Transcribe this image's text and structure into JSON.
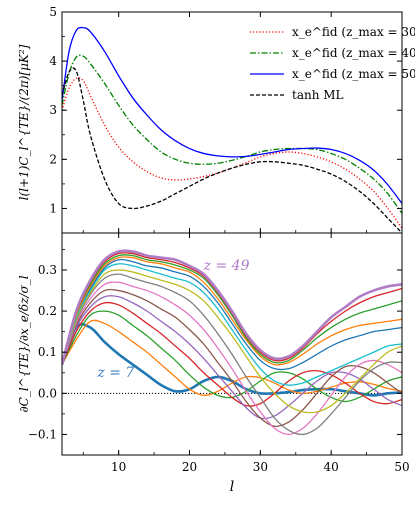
{
  "chart_data": [
    {
      "type": "line",
      "ylabel": "l(l+1)C_l^{TE}/(2π)[μK²]",
      "xlim": [
        2,
        50
      ],
      "ylim": [
        0.5,
        5
      ],
      "yticks": [
        1,
        2,
        3,
        4,
        5
      ],
      "grid": false,
      "legend": "top-right",
      "series": [
        {
          "name": "x_e^fid (z_max = 30)",
          "color": "#ff0000",
          "dash": "dotted",
          "x": [
            2,
            3,
            4,
            5,
            6,
            8,
            10,
            12,
            14,
            16,
            18,
            20,
            22,
            24,
            26,
            28,
            30,
            32,
            34,
            36,
            38,
            40,
            42,
            44,
            46,
            48,
            50
          ],
          "y": [
            3.0,
            3.45,
            3.65,
            3.6,
            3.3,
            2.7,
            2.25,
            1.95,
            1.75,
            1.62,
            1.58,
            1.6,
            1.65,
            1.72,
            1.82,
            1.93,
            2.05,
            2.12,
            2.15,
            2.12,
            2.05,
            1.95,
            1.8,
            1.6,
            1.35,
            1.0,
            0.6
          ]
        },
        {
          "name": "x_e^fid (z_max = 40)",
          "color": "#008000",
          "dash": "dashdot",
          "x": [
            2,
            3,
            4,
            5,
            6,
            8,
            10,
            12,
            14,
            16,
            18,
            20,
            22,
            24,
            26,
            28,
            30,
            32,
            34,
            36,
            38,
            40,
            42,
            44,
            46,
            48,
            50
          ],
          "y": [
            3.1,
            3.75,
            4.08,
            4.1,
            3.95,
            3.55,
            3.1,
            2.7,
            2.4,
            2.15,
            2.0,
            1.92,
            1.9,
            1.92,
            1.98,
            2.06,
            2.15,
            2.2,
            2.22,
            2.22,
            2.2,
            2.12,
            2.0,
            1.82,
            1.6,
            1.3,
            0.9
          ]
        },
        {
          "name": "x_e^fid (z_max = 50)",
          "color": "#0000ff",
          "dash": "solid",
          "x": [
            2,
            3,
            4,
            5,
            6,
            8,
            10,
            12,
            14,
            16,
            18,
            20,
            22,
            24,
            26,
            28,
            30,
            32,
            34,
            36,
            38,
            40,
            42,
            44,
            46,
            48,
            50
          ],
          "y": [
            3.2,
            4.2,
            4.62,
            4.68,
            4.6,
            4.2,
            3.7,
            3.25,
            2.9,
            2.6,
            2.38,
            2.22,
            2.12,
            2.07,
            2.05,
            2.06,
            2.1,
            2.15,
            2.2,
            2.22,
            2.23,
            2.2,
            2.12,
            1.98,
            1.78,
            1.48,
            1.1
          ]
        },
        {
          "name": "tanh ML",
          "color": "#000000",
          "dash": "dashed",
          "x": [
            2,
            3,
            4,
            5,
            6,
            8,
            10,
            12,
            14,
            16,
            18,
            20,
            22,
            24,
            26,
            28,
            30,
            32,
            34,
            36,
            38,
            40,
            42,
            44,
            46,
            48,
            50
          ],
          "y": [
            3.3,
            3.78,
            3.8,
            3.2,
            2.5,
            1.6,
            1.1,
            1.0,
            1.05,
            1.15,
            1.3,
            1.45,
            1.6,
            1.72,
            1.82,
            1.9,
            1.95,
            1.95,
            1.92,
            1.88,
            1.8,
            1.7,
            1.55,
            1.35,
            1.1,
            0.8,
            0.5
          ]
        }
      ]
    },
    {
      "type": "line",
      "xlabel": "l",
      "ylabel": "∂C_l^{TE}/∂x_e/δz/σ_l",
      "xlim": [
        2,
        50
      ],
      "ylim": [
        -0.15,
        0.39
      ],
      "xticks": [
        10,
        20,
        30,
        40,
        50
      ],
      "yticks": [
        -0.1,
        0.0,
        0.1,
        0.2,
        0.3
      ],
      "reference_line": {
        "y": 0.0,
        "style": "dotted"
      },
      "annotations": [
        {
          "text": "z = 49",
          "x": 22,
          "y": 0.3,
          "color": "#b07cc6"
        },
        {
          "text": "z = 7",
          "x": 7,
          "y": 0.04,
          "color": "#3a7fc1"
        }
      ],
      "series": [
        {
          "color": "#1f77b4",
          "width": 2.6,
          "x": [
            2,
            4,
            6,
            8,
            10,
            12,
            14,
            16,
            18,
            20,
            22,
            24,
            26,
            28,
            30,
            32,
            34,
            36,
            38,
            40,
            42,
            44,
            46,
            48,
            50
          ],
          "y": [
            0.07,
            0.16,
            0.16,
            0.125,
            0.095,
            0.07,
            0.045,
            0.02,
            0.005,
            0.01,
            0.03,
            0.04,
            0.03,
            0.01,
            0.0,
            0.0,
            0.003,
            0.008,
            0.01,
            0.01,
            0.005,
            0.0,
            -0.005,
            0.0,
            0.002
          ]
        },
        {
          "color": "#ff7f0e",
          "x": [
            2,
            4,
            6,
            8,
            10,
            12,
            14,
            16,
            18,
            20,
            22,
            24,
            26,
            28,
            30,
            32,
            34,
            36,
            38,
            40,
            42,
            44,
            46,
            48,
            50
          ],
          "y": [
            0.07,
            0.13,
            0.175,
            0.17,
            0.15,
            0.125,
            0.1,
            0.07,
            0.04,
            0.01,
            -0.005,
            0.005,
            0.025,
            0.04,
            0.038,
            0.025,
            0.008,
            0.0,
            0.005,
            0.015,
            0.025,
            0.028,
            0.022,
            0.012,
            0.005
          ]
        },
        {
          "color": "#2ca02c",
          "x": [
            2,
            4,
            6,
            8,
            10,
            12,
            14,
            16,
            18,
            20,
            22,
            24,
            26,
            28,
            30,
            32,
            34,
            36,
            38,
            40,
            42,
            44,
            46,
            48,
            50
          ],
          "y": [
            0.07,
            0.14,
            0.19,
            0.2,
            0.19,
            0.165,
            0.14,
            0.11,
            0.08,
            0.045,
            0.015,
            -0.005,
            -0.01,
            0.005,
            0.03,
            0.05,
            0.05,
            0.035,
            0.01,
            -0.01,
            -0.02,
            -0.01,
            0.01,
            0.03,
            0.04
          ]
        },
        {
          "color": "#d62728",
          "x": [
            2,
            4,
            6,
            8,
            10,
            12,
            14,
            16,
            18,
            20,
            22,
            24,
            26,
            28,
            30,
            32,
            34,
            36,
            38,
            40,
            42,
            44,
            46,
            48,
            50
          ],
          "y": [
            0.07,
            0.15,
            0.2,
            0.22,
            0.215,
            0.195,
            0.17,
            0.145,
            0.115,
            0.085,
            0.05,
            0.02,
            -0.01,
            -0.03,
            -0.025,
            0.0,
            0.03,
            0.05,
            0.055,
            0.045,
            0.025,
            0.0,
            -0.02,
            -0.025,
            -0.015
          ]
        },
        {
          "color": "#9467bd",
          "x": [
            2,
            4,
            6,
            8,
            10,
            12,
            14,
            16,
            18,
            20,
            22,
            24,
            26,
            28,
            30,
            32,
            34,
            36,
            38,
            40,
            42,
            44,
            46,
            48,
            50
          ],
          "y": [
            0.07,
            0.16,
            0.21,
            0.235,
            0.235,
            0.22,
            0.2,
            0.175,
            0.15,
            0.12,
            0.085,
            0.045,
            0.005,
            -0.035,
            -0.06,
            -0.055,
            -0.03,
            0.0,
            0.03,
            0.05,
            0.05,
            0.035,
            0.01,
            -0.015,
            -0.03
          ]
        },
        {
          "color": "#8c564b",
          "x": [
            2,
            4,
            6,
            8,
            10,
            12,
            14,
            16,
            18,
            20,
            22,
            24,
            26,
            28,
            30,
            32,
            34,
            36,
            38,
            40,
            42,
            44,
            46,
            48,
            50
          ],
          "y": [
            0.07,
            0.165,
            0.22,
            0.25,
            0.25,
            0.24,
            0.225,
            0.205,
            0.185,
            0.155,
            0.12,
            0.075,
            0.03,
            -0.02,
            -0.06,
            -0.08,
            -0.07,
            -0.04,
            0.0,
            0.04,
            0.065,
            0.065,
            0.05,
            0.025,
            0.0
          ]
        },
        {
          "color": "#e377c2",
          "x": [
            2,
            4,
            6,
            8,
            10,
            12,
            14,
            16,
            18,
            20,
            22,
            24,
            26,
            28,
            30,
            32,
            34,
            36,
            38,
            40,
            42,
            44,
            46,
            48,
            50
          ],
          "y": [
            0.07,
            0.17,
            0.23,
            0.265,
            0.27,
            0.26,
            0.25,
            0.235,
            0.215,
            0.19,
            0.155,
            0.11,
            0.06,
            0.005,
            -0.045,
            -0.085,
            -0.1,
            -0.085,
            -0.05,
            -0.005,
            0.04,
            0.07,
            0.08,
            0.07,
            0.05
          ]
        },
        {
          "color": "#7f7f7f",
          "x": [
            2,
            4,
            6,
            8,
            10,
            12,
            14,
            16,
            18,
            20,
            22,
            24,
            26,
            28,
            30,
            32,
            34,
            36,
            38,
            40,
            42,
            44,
            46,
            48,
            50
          ],
          "y": [
            0.07,
            0.175,
            0.24,
            0.28,
            0.29,
            0.28,
            0.27,
            0.26,
            0.245,
            0.225,
            0.19,
            0.145,
            0.095,
            0.04,
            -0.01,
            -0.06,
            -0.09,
            -0.1,
            -0.085,
            -0.05,
            -0.01,
            0.03,
            0.06,
            0.075,
            0.075
          ]
        },
        {
          "color": "#bcbd22",
          "x": [
            2,
            4,
            6,
            8,
            10,
            12,
            14,
            16,
            18,
            20,
            22,
            24,
            26,
            28,
            30,
            32,
            34,
            36,
            38,
            40,
            42,
            44,
            46,
            48,
            50
          ],
          "y": [
            0.07,
            0.18,
            0.245,
            0.29,
            0.3,
            0.295,
            0.285,
            0.275,
            0.265,
            0.25,
            0.225,
            0.185,
            0.14,
            0.09,
            0.04,
            0.0,
            -0.03,
            -0.045,
            -0.045,
            -0.03,
            0.0,
            0.035,
            0.07,
            0.1,
            0.115
          ]
        },
        {
          "color": "#17becf",
          "x": [
            2,
            4,
            6,
            8,
            10,
            12,
            14,
            16,
            18,
            20,
            22,
            24,
            26,
            28,
            30,
            32,
            34,
            36,
            38,
            40,
            42,
            44,
            46,
            48,
            50
          ],
          "y": [
            0.07,
            0.185,
            0.25,
            0.3,
            0.315,
            0.31,
            0.3,
            0.29,
            0.28,
            0.27,
            0.245,
            0.205,
            0.155,
            0.105,
            0.06,
            0.03,
            0.02,
            0.025,
            0.04,
            0.055,
            0.07,
            0.085,
            0.1,
            0.115,
            0.12
          ]
        },
        {
          "color": "#1f77b4",
          "x": [
            2,
            4,
            6,
            8,
            10,
            12,
            14,
            16,
            18,
            20,
            22,
            24,
            26,
            28,
            30,
            32,
            34,
            36,
            38,
            40,
            42,
            44,
            46,
            48,
            50
          ],
          "y": [
            0.07,
            0.19,
            0.255,
            0.305,
            0.325,
            0.32,
            0.31,
            0.305,
            0.295,
            0.285,
            0.26,
            0.22,
            0.17,
            0.12,
            0.08,
            0.06,
            0.06,
            0.075,
            0.095,
            0.115,
            0.13,
            0.14,
            0.15,
            0.155,
            0.16
          ]
        },
        {
          "color": "#ff7f0e",
          "x": [
            2,
            4,
            6,
            8,
            10,
            12,
            14,
            16,
            18,
            20,
            22,
            24,
            26,
            28,
            30,
            32,
            34,
            36,
            38,
            40,
            42,
            44,
            46,
            48,
            50
          ],
          "y": [
            0.07,
            0.19,
            0.26,
            0.31,
            0.33,
            0.33,
            0.32,
            0.315,
            0.305,
            0.295,
            0.27,
            0.23,
            0.18,
            0.13,
            0.09,
            0.07,
            0.075,
            0.095,
            0.12,
            0.14,
            0.155,
            0.165,
            0.17,
            0.175,
            0.18
          ]
        },
        {
          "color": "#2ca02c",
          "x": [
            2,
            4,
            6,
            8,
            10,
            12,
            14,
            16,
            18,
            20,
            22,
            24,
            26,
            28,
            30,
            32,
            34,
            36,
            38,
            40,
            42,
            44,
            46,
            48,
            50
          ],
          "y": [
            0.07,
            0.195,
            0.265,
            0.315,
            0.335,
            0.335,
            0.325,
            0.32,
            0.312,
            0.3,
            0.28,
            0.24,
            0.19,
            0.135,
            0.095,
            0.075,
            0.08,
            0.105,
            0.135,
            0.16,
            0.18,
            0.195,
            0.205,
            0.215,
            0.225
          ]
        },
        {
          "color": "#d62728",
          "x": [
            2,
            4,
            6,
            8,
            10,
            12,
            14,
            16,
            18,
            20,
            22,
            24,
            26,
            28,
            30,
            32,
            34,
            36,
            38,
            40,
            42,
            44,
            46,
            48,
            50
          ],
          "y": [
            0.07,
            0.195,
            0.27,
            0.32,
            0.34,
            0.34,
            0.33,
            0.325,
            0.318,
            0.305,
            0.285,
            0.245,
            0.195,
            0.14,
            0.1,
            0.08,
            0.085,
            0.11,
            0.145,
            0.175,
            0.2,
            0.22,
            0.235,
            0.245,
            0.255
          ]
        },
        {
          "color": "#b07cc6",
          "width": 2.6,
          "x": [
            2,
            4,
            6,
            8,
            10,
            12,
            14,
            16,
            18,
            20,
            22,
            24,
            26,
            28,
            30,
            32,
            34,
            36,
            38,
            40,
            42,
            44,
            46,
            48,
            50
          ],
          "y": [
            0.07,
            0.2,
            0.275,
            0.325,
            0.345,
            0.345,
            0.335,
            0.33,
            0.325,
            0.31,
            0.29,
            0.25,
            0.2,
            0.145,
            0.105,
            0.085,
            0.09,
            0.115,
            0.15,
            0.185,
            0.21,
            0.235,
            0.25,
            0.26,
            0.265
          ]
        }
      ]
    }
  ]
}
